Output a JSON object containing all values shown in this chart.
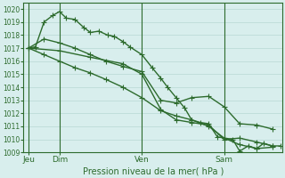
{
  "bg_color": "#d8eeed",
  "grid_color": "#b8d8d4",
  "line_color": "#2d6b2d",
  "title": "Pression niveau de la mer( hPa )",
  "ylim": [
    1009,
    1020.5
  ],
  "yticks": [
    1009,
    1010,
    1011,
    1012,
    1013,
    1014,
    1015,
    1016,
    1017,
    1018,
    1019,
    1020
  ],
  "day_labels": [
    "Jeu",
    "Dim",
    "Ven",
    "Sam"
  ],
  "day_positions": [
    0,
    18,
    66,
    114
  ],
  "vline_positions": [
    0,
    18,
    66,
    114
  ],
  "series": [
    {
      "x": [
        0,
        4,
        9,
        14,
        18,
        22,
        27,
        32,
        36,
        41,
        46,
        50,
        55,
        59,
        66,
        72,
        77,
        81,
        86,
        91,
        95,
        100,
        105,
        110,
        114,
        119,
        123,
        128,
        133,
        137,
        142,
        147
      ],
      "y": [
        1017.0,
        1017.1,
        1019.0,
        1019.5,
        1019.8,
        1019.3,
        1019.2,
        1018.6,
        1018.2,
        1018.3,
        1018.0,
        1017.9,
        1017.5,
        1017.1,
        1016.5,
        1015.5,
        1014.7,
        1014.0,
        1013.2,
        1012.4,
        1011.5,
        1011.3,
        1011.2,
        1010.2,
        1010.1,
        1010.0,
        1009.1,
        1009.5,
        1009.3,
        1009.7,
        1009.5,
        1009.5
      ],
      "marker": "+",
      "markersize": 4,
      "linewidth": 1.0
    },
    {
      "x": [
        0,
        9,
        18,
        27,
        36,
        45,
        55,
        66,
        77,
        86,
        95,
        105,
        114,
        123,
        133,
        142
      ],
      "y": [
        1017.0,
        1017.7,
        1017.4,
        1017.0,
        1016.5,
        1016.0,
        1015.6,
        1015.2,
        1013.0,
        1012.8,
        1013.2,
        1013.3,
        1012.5,
        1011.2,
        1011.1,
        1010.8
      ],
      "marker": "+",
      "markersize": 4,
      "linewidth": 1.0
    },
    {
      "x": [
        0,
        9,
        18,
        27,
        36,
        45,
        55,
        66,
        77,
        86,
        95,
        105,
        114,
        123,
        133,
        142
      ],
      "y": [
        1017.0,
        1016.5,
        1016.0,
        1015.5,
        1015.1,
        1014.6,
        1014.0,
        1013.2,
        1012.2,
        1011.8,
        1011.5,
        1011.0,
        1010.1,
        1009.6,
        1009.3,
        1009.4
      ],
      "marker": "+",
      "markersize": 4,
      "linewidth": 1.0
    },
    {
      "x": [
        0,
        18,
        36,
        55,
        66,
        77,
        86,
        95,
        105,
        114,
        123,
        133,
        142
      ],
      "y": [
        1017.0,
        1016.8,
        1016.3,
        1015.8,
        1015.0,
        1012.3,
        1011.5,
        1011.3,
        1011.1,
        1010.0,
        1010.1,
        1009.8,
        1009.5
      ],
      "marker": "+",
      "markersize": 4,
      "linewidth": 1.0
    }
  ]
}
